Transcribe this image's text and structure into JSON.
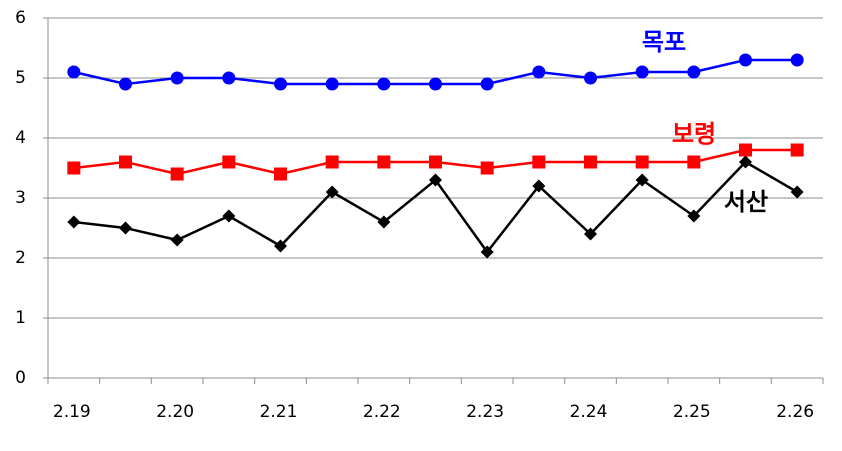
{
  "chart_data": {
    "type": "line",
    "categories": [
      "2.19",
      null,
      "2.20",
      null,
      "2.21",
      null,
      "2.22",
      null,
      "2.23",
      null,
      "2.24",
      null,
      "2.25",
      null,
      "2.26"
    ],
    "series": [
      {
        "name": "목포",
        "color": "#0000ff",
        "marker": "circle",
        "values": [
          5.1,
          4.9,
          5.0,
          5.0,
          4.9,
          4.9,
          4.9,
          4.9,
          4.9,
          5.1,
          5.0,
          5.1,
          5.1,
          5.3,
          5.3
        ]
      },
      {
        "name": "보령",
        "color": "#ff0000",
        "marker": "square",
        "values": [
          3.5,
          3.6,
          3.4,
          3.6,
          3.4,
          3.6,
          3.6,
          3.6,
          3.5,
          3.6,
          3.6,
          3.6,
          3.6,
          3.8,
          3.8
        ]
      },
      {
        "name": "서산",
        "color": "#000000",
        "marker": "diamond",
        "values": [
          2.6,
          2.5,
          2.3,
          2.7,
          2.2,
          3.1,
          2.6,
          3.3,
          2.1,
          3.2,
          2.4,
          3.3,
          2.7,
          3.6,
          3.1
        ]
      }
    ],
    "ylim": [
      0,
      6
    ],
    "yticks": [
      0,
      1,
      2,
      3,
      4,
      5,
      6
    ],
    "grid": true
  }
}
